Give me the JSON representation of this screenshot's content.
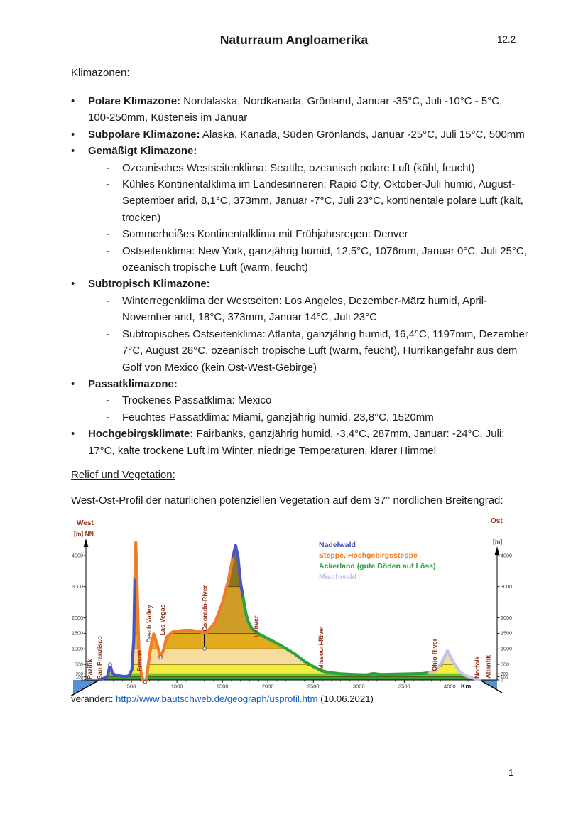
{
  "page": {
    "title": "Naturraum Angloamerika",
    "doc_number": "12.2",
    "page_number": "1"
  },
  "klimazonen": {
    "heading": "Klimazonen:",
    "lines": [
      {
        "style": "b",
        "bold": "Polare Klimazone:",
        "text": " Nordalaska, Nordkanada, Grönland, Januar -35°C, Juli -10°C - 5°C,"
      },
      {
        "style": "c",
        "text": "100-250mm, Küsteneis im Januar"
      },
      {
        "style": "b",
        "bold": "Subpolare Klimazone:",
        "text": " Alaska, Kanada, Süden Grönlands, Januar -25°C, Juli 15°C, 500mm"
      },
      {
        "style": "b",
        "bold": "Gemäßigt Klimazone:",
        "text": ""
      },
      {
        "style": "s",
        "text": "Ozeanisches Westseitenklima: Seattle, ozeanisch polare Luft (kühl, feucht)"
      },
      {
        "style": "s",
        "text": "Kühles Kontinentalklima im Landesinneren: Rapid City, Oktober-Juli humid, August-"
      },
      {
        "style": "sc",
        "text": "September arid, 8,1°C, 373mm, Januar -7°C, Juli 23°C, kontinentale polare Luft (kalt,"
      },
      {
        "style": "sc",
        "text": "trocken)"
      },
      {
        "style": "s",
        "text": "Sommerheißes Kontinentalklima mit Frühjahrsregen: Denver"
      },
      {
        "style": "s",
        "text": "Ostseitenklima: New York, ganzjährig humid, 12,5°C, 1076mm, Januar 0°C, Juli 25°C,"
      },
      {
        "style": "sc",
        "text": "ozeanisch tropische Luft (warm, feucht)"
      },
      {
        "style": "b",
        "bold": "Subtropisch Klimazone:",
        "text": ""
      },
      {
        "style": "s",
        "text": "Winterregenklima der Westseiten: Los Angeles, Dezember-März humid, April-"
      },
      {
        "style": "sc",
        "text": "November arid, 18°C, 373mm, Januar 14°C, Juli 23°C"
      },
      {
        "style": "s",
        "text": "Subtropisches Ostseitenklima: Atlanta, ganzjährig humid, 16,4°C, 1197mm, Dezember"
      },
      {
        "style": "sc",
        "text": "7°C, August 28°C, ozeanisch tropische Luft (warm, feucht), Hurrikangefahr aus dem"
      },
      {
        "style": "sc",
        "text": "Golf von Mexico (kein Ost-West-Gebirge)"
      },
      {
        "style": "b",
        "bold": "Passatklimazone:",
        "text": ""
      },
      {
        "style": "s",
        "text": "Trockenes Passatklima: Mexico"
      },
      {
        "style": "s",
        "text": "Feuchtes Passatklima: Miami, ganzjährig humid, 23,8°C, 1520mm"
      },
      {
        "style": "b",
        "bold": "Hochgebirgsklimate:",
        "text": " Fairbanks, ganzjährig humid, -3,4°C, 287mm, Januar: -24°C, Juli:"
      },
      {
        "style": "c",
        "text": "17°C, kalte trockene Luft im Winter, niedrige Temperaturen, klarer Himmel"
      }
    ]
  },
  "relief": {
    "heading": "Relief und Vegetation:",
    "intro": "West-Ost-Profil der natürlichen potenziellen Vegetation auf dem 37° nördlichen Breitengrad:"
  },
  "source": {
    "prefix": "verändert: ",
    "url": "http://www.bautschweb.de/geograph/usprofil.htm",
    "suffix": " (10.06.2021)"
  },
  "chart_data": {
    "type": "area",
    "description": "West-east hypsometric elevation profile of the USA at 37°N with potential natural vegetation",
    "x_unit": "Km",
    "xlim": [
      0,
      4520
    ],
    "ylim": [
      -500,
      4500
    ],
    "x_ticks": [
      500,
      1000,
      1500,
      2000,
      2500,
      3000,
      3500,
      4000
    ],
    "y_ticks": [
      0,
      100,
      200,
      500,
      1000,
      1500,
      2000,
      3000,
      4000
    ],
    "corner_labels": {
      "top_left": "West",
      "top_right": "Ost",
      "axis_left": "[m] NN",
      "axis_right": "[m]"
    },
    "colors": {
      "water": "#5590d9",
      "label": "#8f2f17",
      "band_line": "#4a3d08"
    },
    "bands": [
      {
        "from": 0,
        "to": 100,
        "color": "#2da233"
      },
      {
        "from": 100,
        "to": 200,
        "color": "#6fc23f"
      },
      {
        "from": 200,
        "to": 500,
        "color": "#f3ee3e"
      },
      {
        "from": 500,
        "to": 1000,
        "color": "#f8dc9d"
      },
      {
        "from": 1000,
        "to": 1500,
        "color": "#e2ab1d"
      },
      {
        "from": 1500,
        "to": 3000,
        "color": "#cf9d26"
      },
      {
        "from": 3000,
        "to": 4600,
        "color": "#8c7522"
      }
    ],
    "band_lines": [
      100,
      200,
      500,
      1000,
      1500,
      3000
    ],
    "profile": [
      [
        150,
        0
      ],
      [
        200,
        60
      ],
      [
        240,
        130
      ],
      [
        265,
        500
      ],
      [
        290,
        220
      ],
      [
        330,
        150
      ],
      [
        420,
        110
      ],
      [
        470,
        130
      ],
      [
        505,
        320
      ],
      [
        525,
        1300
      ],
      [
        538,
        3300
      ],
      [
        548,
        4420
      ],
      [
        560,
        3500
      ],
      [
        572,
        1900
      ],
      [
        585,
        800
      ],
      [
        605,
        250
      ],
      [
        630,
        -30
      ],
      [
        652,
        -85
      ],
      [
        668,
        100
      ],
      [
        690,
        600
      ],
      [
        712,
        1050
      ],
      [
        745,
        1480
      ],
      [
        785,
        1120
      ],
      [
        820,
        730
      ],
      [
        850,
        950
      ],
      [
        890,
        1380
      ],
      [
        950,
        1540
      ],
      [
        1050,
        1590
      ],
      [
        1150,
        1600
      ],
      [
        1250,
        1560
      ],
      [
        1304,
        1515
      ],
      [
        1330,
        1540
      ],
      [
        1420,
        1850
      ],
      [
        1500,
        2480
      ],
      [
        1565,
        3200
      ],
      [
        1615,
        3950
      ],
      [
        1645,
        4330
      ],
      [
        1672,
        3950
      ],
      [
        1700,
        3120
      ],
      [
        1728,
        2650
      ],
      [
        1758,
        2150
      ],
      [
        1788,
        1850
      ],
      [
        1825,
        1650
      ],
      [
        1900,
        1480
      ],
      [
        2000,
        1330
      ],
      [
        2100,
        1180
      ],
      [
        2200,
        1010
      ],
      [
        2300,
        830
      ],
      [
        2400,
        600
      ],
      [
        2500,
        430
      ],
      [
        2590,
        290
      ],
      [
        2680,
        235
      ],
      [
        2800,
        200
      ],
      [
        2950,
        175
      ],
      [
        3080,
        165
      ],
      [
        3160,
        205
      ],
      [
        3240,
        175
      ],
      [
        3400,
        185
      ],
      [
        3550,
        195
      ],
      [
        3700,
        205
      ],
      [
        3780,
        235
      ],
      [
        3850,
        320
      ],
      [
        3910,
        560
      ],
      [
        3975,
        940
      ],
      [
        4040,
        560
      ],
      [
        4110,
        260
      ],
      [
        4180,
        130
      ],
      [
        4260,
        55
      ],
      [
        4330,
        0
      ]
    ],
    "segments": [
      {
        "name": "Nadelwald",
        "color": "#4a55bd",
        "from": 150,
        "to": 538
      },
      {
        "name": "Steppe, Hochgebirgssteppe",
        "color": "#f07d2b",
        "from": 538,
        "to": 1615
      },
      {
        "name": "Nadelwald",
        "color": "#4a55bd",
        "from": 1615,
        "to": 1728
      },
      {
        "name": "Ackerland",
        "color": "#2ea23c",
        "from": 1728,
        "to": 3780
      },
      {
        "name": "Mischwald",
        "color": "#c7c3e4",
        "from": 3780,
        "to": 4330
      }
    ],
    "legend": [
      {
        "label": "Nadelwald",
        "color": "#3f4cb0"
      },
      {
        "label": "Steppe, Hochgebirgssteppe",
        "color": "#f07d28"
      },
      {
        "label": "Ackerland (gute Böden auf Löss)",
        "color": "#2fa03a"
      },
      {
        "label": "Mischwald",
        "color": "#c5c2e0"
      }
    ],
    "landmarks": [
      {
        "label": "Pazifik",
        "km": 40,
        "base_m": 20
      },
      {
        "label": "San Franzisco",
        "km": 150,
        "base_m": 20
      },
      {
        "label": "Fresno",
        "km": 585,
        "base_m": 270
      },
      {
        "label": "Death Valley",
        "km": 690,
        "base_m": 1200
      },
      {
        "label": "Las Vegas",
        "km": 840,
        "base_m": 1430
      },
      {
        "label": "Colorado-River",
        "km": 1304,
        "base_m": 1560
      },
      {
        "label": "Denver",
        "km": 1867,
        "base_m": 1370
      },
      {
        "label": "Missouri-River",
        "km": 2580,
        "base_m": 320
      },
      {
        "label": "Ohio-River",
        "km": 3828,
        "base_m": 280
      },
      {
        "label": "Norfolk",
        "km": 4300,
        "base_m": 50
      },
      {
        "label": "Atlantik",
        "km": 4420,
        "base_m": 50
      }
    ],
    "markers": [
      [
        265,
        500
      ],
      [
        652,
        -60
      ],
      [
        820,
        730
      ],
      [
        1304,
        1010
      ]
    ],
    "colorado_drop": {
      "km": 1304,
      "top_m": 1515,
      "bottom_m": 1050
    },
    "shadow_lines": [
      [
        2430,
        500,
        2650,
        260
      ],
      [
        3900,
        430,
        3970,
        870
      ],
      [
        4190,
        130,
        4328,
        5
      ]
    ]
  }
}
